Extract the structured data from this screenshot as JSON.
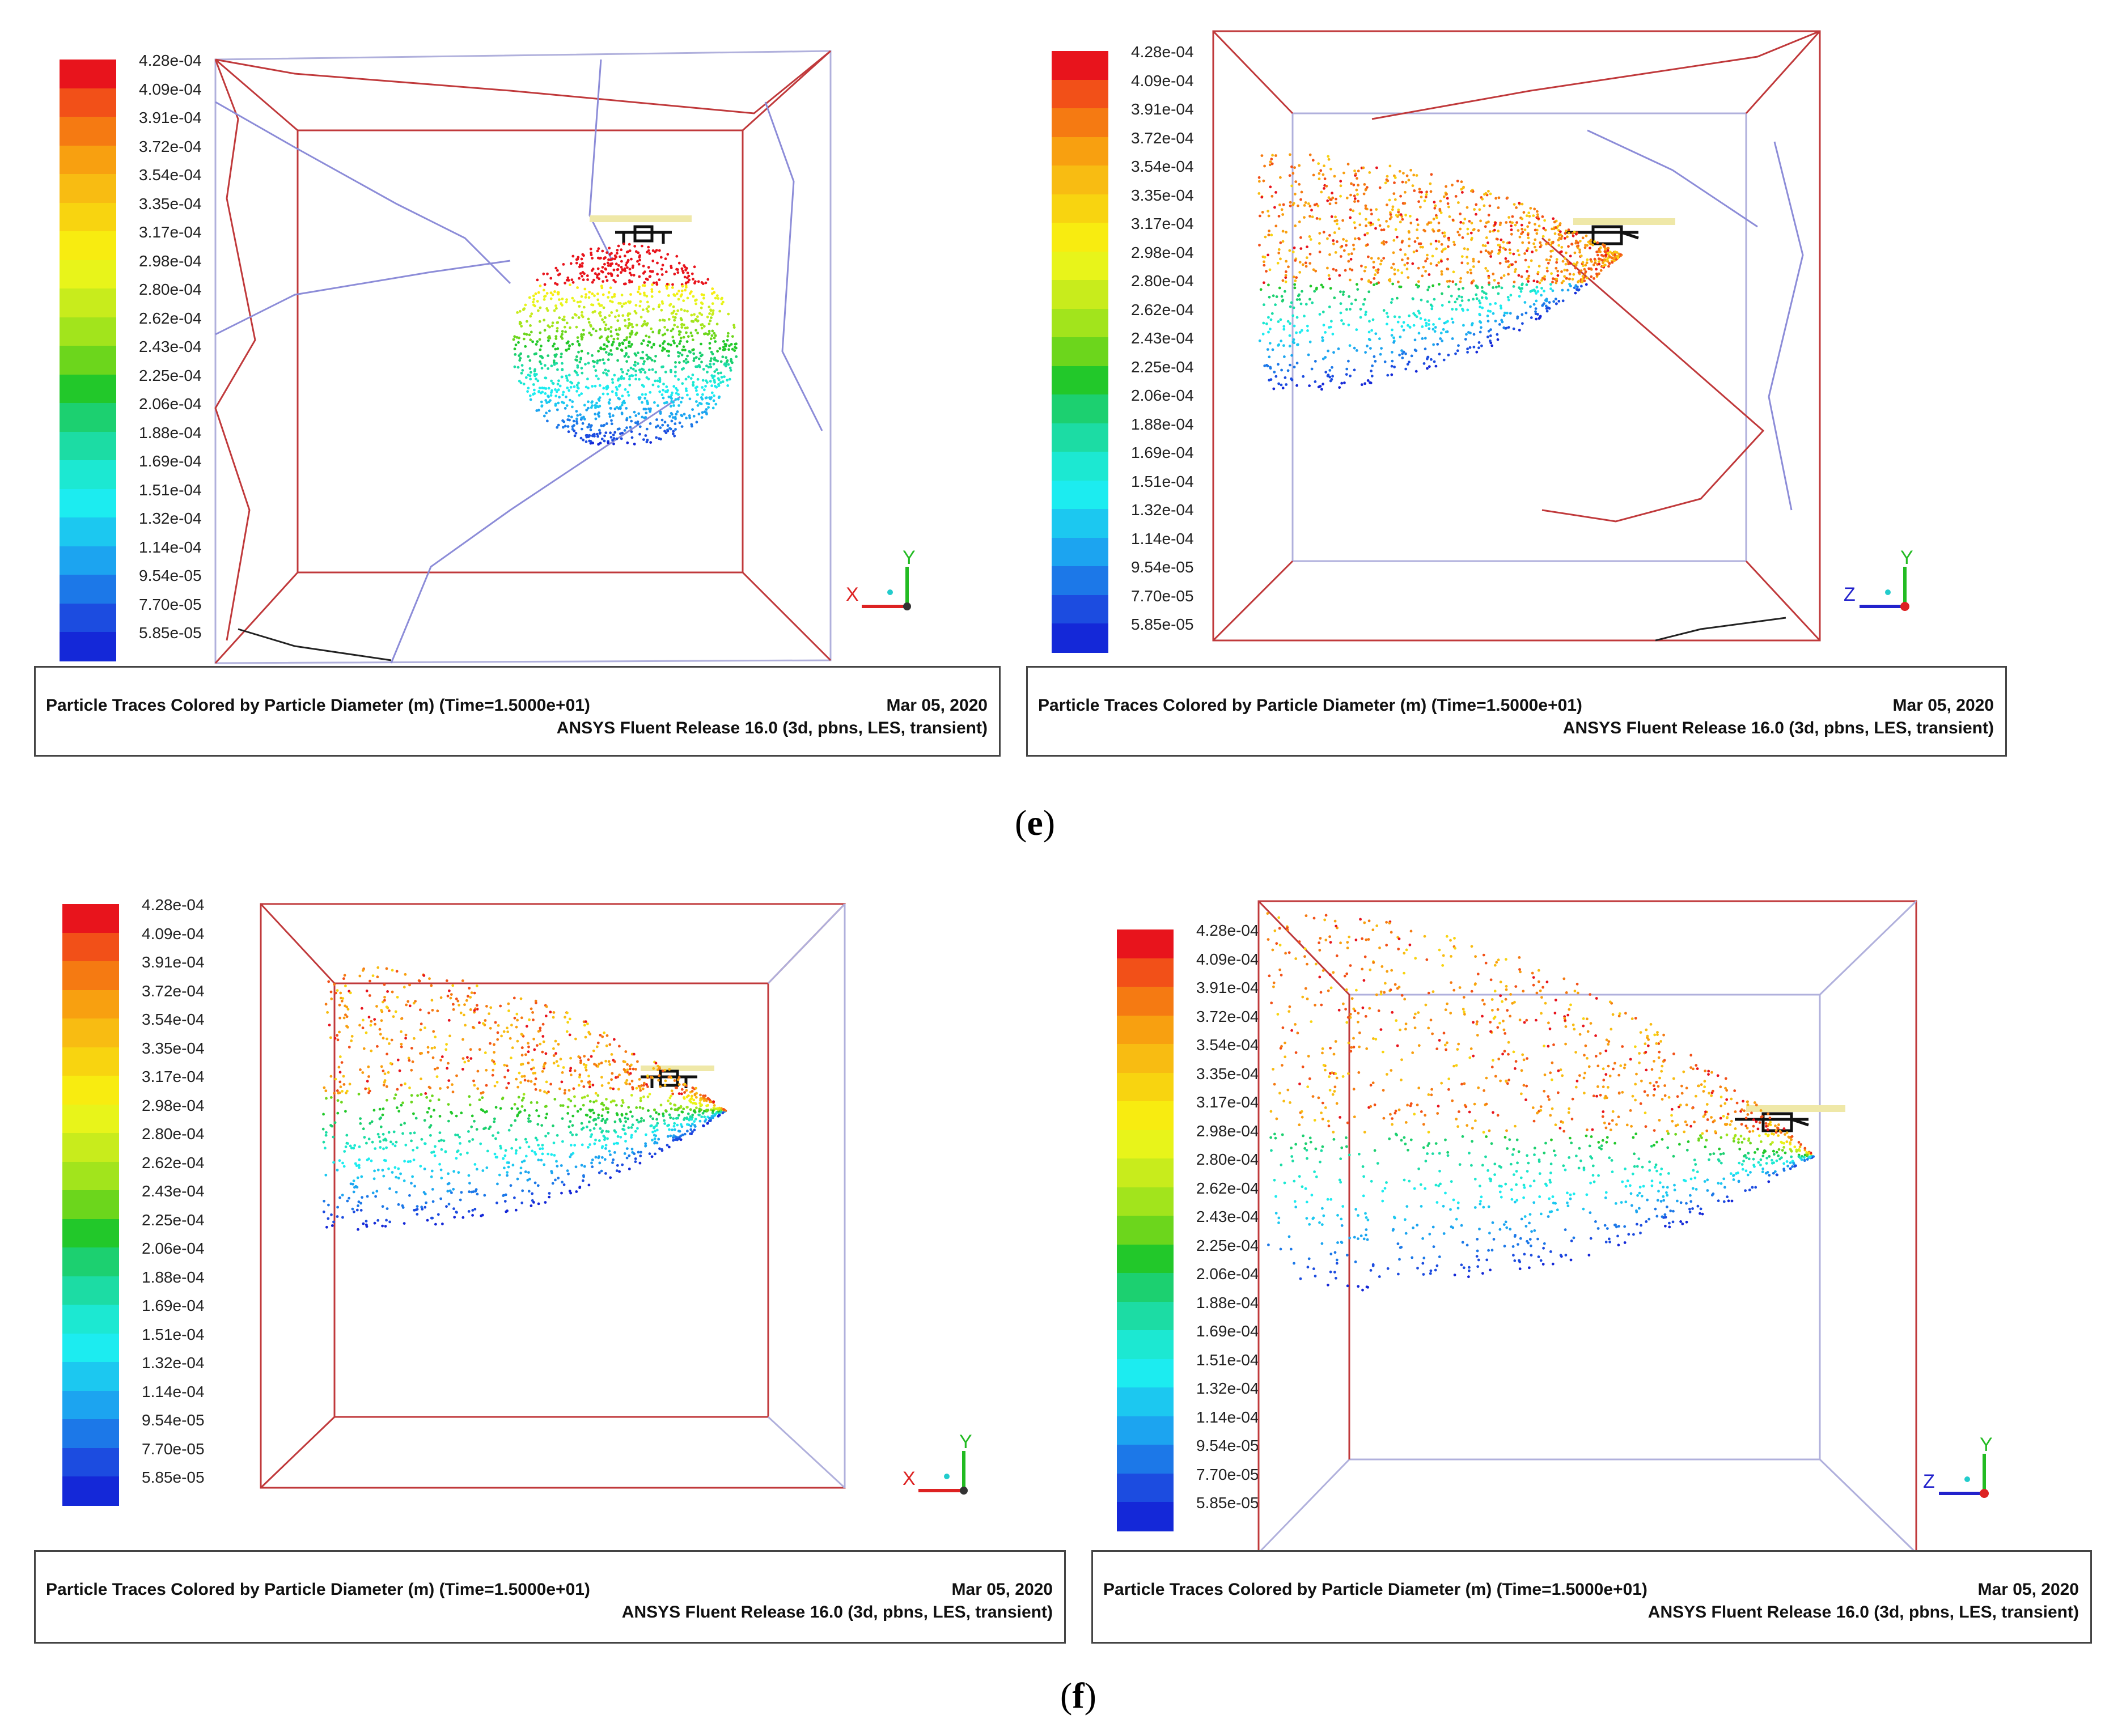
{
  "colorbar": {
    "labels": [
      "4.28e-04",
      "4.09e-04",
      "3.91e-04",
      "3.72e-04",
      "3.54e-04",
      "3.35e-04",
      "3.17e-04",
      "2.98e-04",
      "2.80e-04",
      "2.62e-04",
      "2.43e-04",
      "2.25e-04",
      "2.06e-04",
      "1.88e-04",
      "1.69e-04",
      "1.51e-04",
      "1.32e-04",
      "1.14e-04",
      "9.54e-05",
      "7.70e-05",
      "5.85e-05"
    ],
    "colors": [
      "#e8141c",
      "#f25018",
      "#f57a12",
      "#f8a010",
      "#f8bc12",
      "#f8d410",
      "#f8ec10",
      "#e8f41a",
      "#c8ec1c",
      "#a2e41c",
      "#6cd61c",
      "#22c82a",
      "#1cd070",
      "#1cdca4",
      "#1ce8d2",
      "#1cecf0",
      "#1cc8f0",
      "#1ca4f0",
      "#1c78e8",
      "#1c4ce0",
      "#1428d8"
    ]
  },
  "caption": {
    "title": "Particle Traces Colored by Particle Diameter (m)  (Time=1.5000e+01)",
    "date": "Mar 05, 2020",
    "release": "ANSYS Fluent Release 16.0 (3d, pbns, LES, transient)"
  },
  "axes": {
    "x": "X",
    "y": "Y",
    "z": "Z"
  },
  "subfigures": {
    "e": "e",
    "f": "f"
  }
}
